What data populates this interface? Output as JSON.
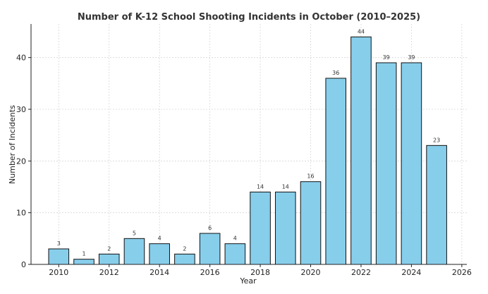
{
  "chart_data": {
    "type": "bar",
    "title": "Number of K-12 School Shooting Incidents in October (2010–2025)",
    "xlabel": "Year",
    "ylabel": "Number of Incidents",
    "categories": [
      "2010",
      "2011",
      "2012",
      "2013",
      "2014",
      "2015",
      "2016",
      "2017",
      "2018",
      "2019",
      "2020",
      "2021",
      "2022",
      "2023",
      "2024",
      "2025"
    ],
    "x": [
      2010,
      2011,
      2012,
      2013,
      2014,
      2015,
      2016,
      2017,
      2018,
      2019,
      2020,
      2021,
      2022,
      2023,
      2024,
      2025
    ],
    "values": [
      3,
      1,
      2,
      5,
      4,
      2,
      6,
      4,
      14,
      14,
      16,
      36,
      44,
      39,
      39,
      23
    ],
    "value_labels": [
      "3",
      "1",
      "2",
      "5",
      "4",
      "2",
      "6",
      "4",
      "14",
      "14",
      "16",
      "36",
      "44",
      "39",
      "39",
      "23"
    ],
    "xlim": [
      2008.9,
      2026.2
    ],
    "ylim": [
      0,
      46.5
    ],
    "x_ticks": [
      2010,
      2012,
      2014,
      2016,
      2018,
      2020,
      2022,
      2024,
      2026
    ],
    "x_tick_labels": [
      "2010",
      "2012",
      "2014",
      "2016",
      "2018",
      "2020",
      "2022",
      "2024",
      "2026"
    ],
    "y_ticks": [
      0,
      10,
      20,
      30,
      40
    ],
    "y_tick_labels": [
      "0",
      "10",
      "20",
      "30",
      "40"
    ],
    "grid": true,
    "legend": "none",
    "colors": {
      "bar_fill": "#87ceeb",
      "bar_edge": "#111111",
      "grid": "#d6d6d6",
      "axis": "#222222"
    }
  }
}
